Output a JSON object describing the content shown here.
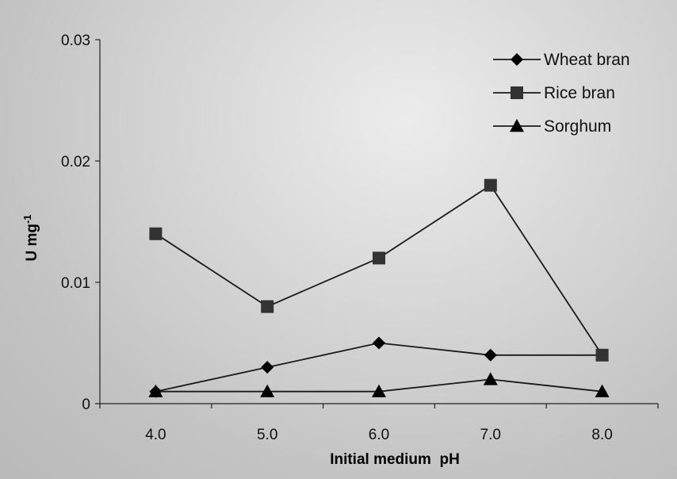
{
  "chart_data": {
    "type": "line",
    "title": "",
    "xlabel": "Initial medium  pH",
    "ylabel": "U mg",
    "ylabel_superscript": "-1",
    "categories": [
      "4.0",
      "5.0",
      "6.0",
      "7.0",
      "8.0"
    ],
    "x": [
      4.0,
      5.0,
      6.0,
      7.0,
      8.0
    ],
    "ylim": [
      0,
      0.03
    ],
    "yticks": [
      "0",
      "0.01",
      "0.02",
      "0.03"
    ],
    "ytick_values": [
      0,
      0.01,
      0.02,
      0.03
    ],
    "grid": false,
    "legend_position": "top-right",
    "series": [
      {
        "name": "Wheat bran",
        "marker": "diamond",
        "color": "#000000",
        "values": [
          0.001,
          0.003,
          0.005,
          0.004,
          0.004
        ]
      },
      {
        "name": "Rice bran",
        "marker": "square",
        "color": "#333333",
        "values": [
          0.014,
          0.008,
          0.012,
          0.018,
          0.004
        ]
      },
      {
        "name": "Sorghum",
        "marker": "triangle",
        "color": "#000000",
        "values": [
          0.001,
          0.001,
          0.001,
          0.002,
          0.001
        ]
      }
    ]
  }
}
